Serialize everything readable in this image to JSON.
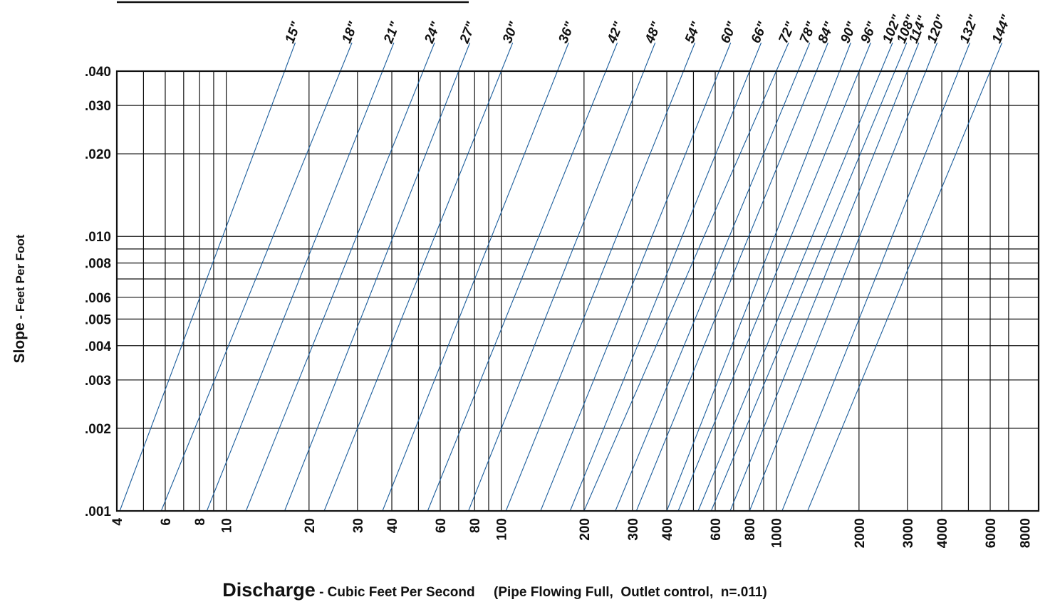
{
  "chart_data": {
    "type": "line",
    "x_scale": "log",
    "y_scale": "log",
    "xlim": [
      4,
      9000
    ],
    "ylim": [
      0.001,
      0.04
    ],
    "x_ticks": [
      4,
      6,
      8,
      10,
      20,
      30,
      40,
      60,
      80,
      100,
      200,
      300,
      400,
      600,
      800,
      1000,
      2000,
      3000,
      4000,
      6000,
      8000
    ],
    "x_tick_labels": [
      "4",
      "6",
      "8",
      "10",
      "20",
      "30",
      "40",
      "60",
      "80",
      "100",
      "200",
      "300",
      "400",
      "600",
      "800",
      "1000",
      "2000",
      "3000",
      "4000",
      "6000",
      "8000"
    ],
    "x_grid": [
      5,
      6,
      7,
      8,
      9,
      10,
      20,
      30,
      40,
      50,
      60,
      70,
      80,
      90,
      100,
      200,
      300,
      400,
      500,
      600,
      700,
      800,
      900,
      1000,
      2000,
      3000,
      4000,
      5000,
      6000,
      7000
    ],
    "y_ticks": [
      0.001,
      0.002,
      0.003,
      0.004,
      0.005,
      0.006,
      0.008,
      0.01,
      0.02,
      0.03,
      0.04
    ],
    "y_tick_labels": [
      ".001",
      ".002",
      ".003",
      ".004",
      ".005",
      ".006",
      ".008",
      ".010",
      ".020",
      ".030",
      ".040"
    ],
    "y_grid": [
      0.002,
      0.003,
      0.004,
      0.005,
      0.006,
      0.007,
      0.008,
      0.009,
      0.01,
      0.02,
      0.03
    ],
    "grid": true,
    "xlabel": "Discharge",
    "xlabel_sub": " - Cubic Feet Per Second     (Pipe Flowing Full,  Outlet control,  n=.011)",
    "ylabel": "Slope",
    "ylabel_sub": " - Feet Per Foot",
    "series": [
      {
        "name": "15\"",
        "x": [
          4.1,
          16.3
        ],
        "y": [
          0.001,
          0.04
        ]
      },
      {
        "name": "18\"",
        "x": [
          5.8,
          26.0
        ],
        "y": [
          0.001,
          0.04
        ]
      },
      {
        "name": "21\"",
        "x": [
          8.5,
          37.0
        ],
        "y": [
          0.001,
          0.04
        ]
      },
      {
        "name": "24\"",
        "x": [
          11.8,
          52.0
        ],
        "y": [
          0.001,
          0.04
        ]
      },
      {
        "name": "27\"",
        "x": [
          16.3,
          70.0
        ],
        "y": [
          0.001,
          0.04
        ]
      },
      {
        "name": "30\"",
        "x": [
          22.7,
          100.0
        ],
        "y": [
          0.001,
          0.04
        ]
      },
      {
        "name": "36\"",
        "x": [
          37.0,
          160.0
        ],
        "y": [
          0.001,
          0.04
        ]
      },
      {
        "name": "42\"",
        "x": [
          54.0,
          240.0
        ],
        "y": [
          0.001,
          0.04
        ]
      },
      {
        "name": "48\"",
        "x": [
          76.0,
          330.0
        ],
        "y": [
          0.001,
          0.04
        ]
      },
      {
        "name": "54\"",
        "x": [
          104.0,
          460.0
        ],
        "y": [
          0.001,
          0.04
        ]
      },
      {
        "name": "60\"",
        "x": [
          139.0,
          620.0
        ],
        "y": [
          0.001,
          0.04
        ]
      },
      {
        "name": "66\"",
        "x": [
          178.0,
          800.0
        ],
        "y": [
          0.001,
          0.04
        ]
      },
      {
        "name": "72\"",
        "x": [
          200.0,
          1000.0
        ],
        "y": [
          0.001,
          0.04
        ]
      },
      {
        "name": "78\"",
        "x": [
          260.0,
          1200.0
        ],
        "y": [
          0.001,
          0.04
        ]
      },
      {
        "name": "84\"",
        "x": [
          310.0,
          1400.0
        ],
        "y": [
          0.001,
          0.04
        ]
      },
      {
        "name": "90\"",
        "x": [
          400.0,
          1700.0
        ],
        "y": [
          0.001,
          0.04
        ]
      },
      {
        "name": "96\"",
        "x": [
          440.0,
          2000.0
        ],
        "y": [
          0.001,
          0.04
        ]
      },
      {
        "name": "102\"",
        "x": [
          520.0,
          2400.0
        ],
        "y": [
          0.001,
          0.04
        ]
      },
      {
        "name": "108\"",
        "x": [
          580.0,
          2700.0
        ],
        "y": [
          0.001,
          0.04
        ]
      },
      {
        "name": "114\"",
        "x": [
          680.0,
          3000.0
        ],
        "y": [
          0.001,
          0.04
        ]
      },
      {
        "name": "120\"",
        "x": [
          800.0,
          3500.0
        ],
        "y": [
          0.001,
          0.04
        ]
      },
      {
        "name": "132\"",
        "x": [
          1050.0,
          4600.0
        ],
        "y": [
          0.001,
          0.04
        ]
      },
      {
        "name": "144\"",
        "x": [
          1300.0,
          6000.0
        ],
        "y": [
          0.001,
          0.04
        ]
      }
    ]
  }
}
